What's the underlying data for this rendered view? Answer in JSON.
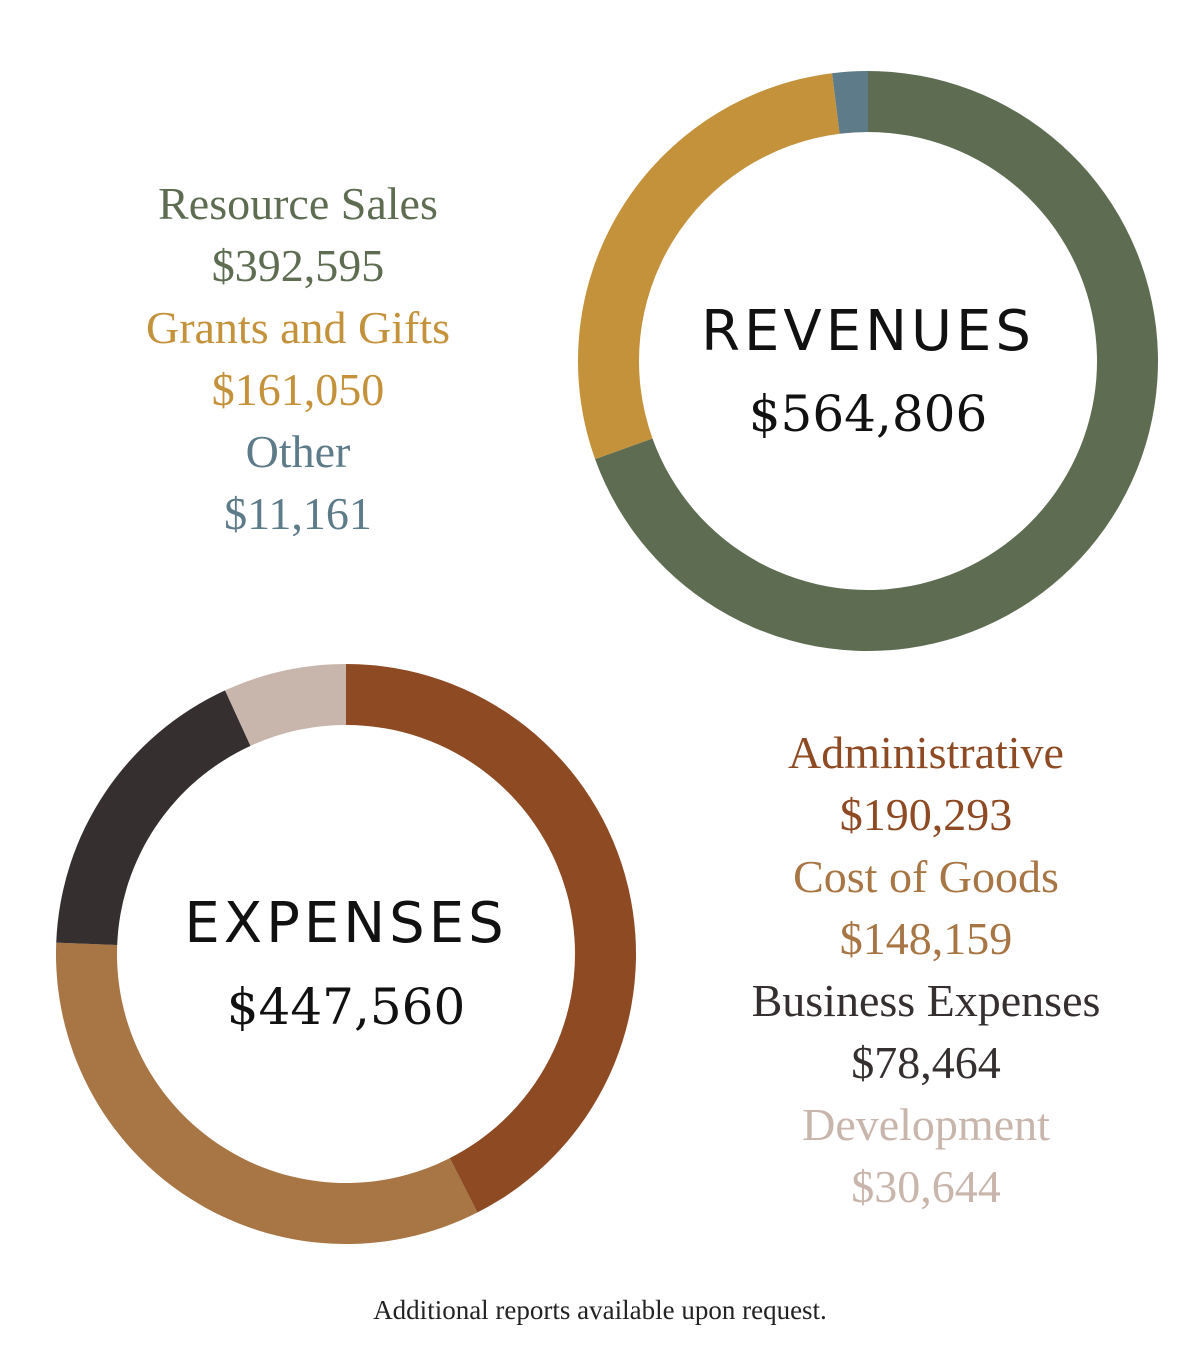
{
  "chart_data": [
    {
      "type": "pie",
      "variant": "donut",
      "title": "REVENUES",
      "total": "$564,806",
      "legend_position": "left",
      "series": [
        {
          "name": "Resource Sales",
          "value": 392595,
          "label": "$392,595",
          "color": "#5e6d52"
        },
        {
          "name": "Grants and Gifts",
          "value": 161050,
          "label": "$161,050",
          "color": "#c4923b"
        },
        {
          "name": "Other",
          "value": 11161,
          "label": "$11,161",
          "color": "#5d7b88"
        }
      ]
    },
    {
      "type": "pie",
      "variant": "donut",
      "title": "EXPENSES",
      "total": "$447,560",
      "legend_position": "right",
      "series": [
        {
          "name": "Administrative",
          "value": 190293,
          "label": "$190,293",
          "color": "#8d4a23"
        },
        {
          "name": "Cost of Goods",
          "value": 148159,
          "label": "$148,159",
          "color": "#a77644"
        },
        {
          "name": "Business Expenses",
          "value": 78464,
          "label": "$78,464",
          "color": "#352f2f"
        },
        {
          "name": "Development",
          "value": 30644,
          "label": "$30,644",
          "color": "#c8b5ab"
        }
      ]
    }
  ],
  "footer": {
    "note": "Additional reports available upon request."
  }
}
